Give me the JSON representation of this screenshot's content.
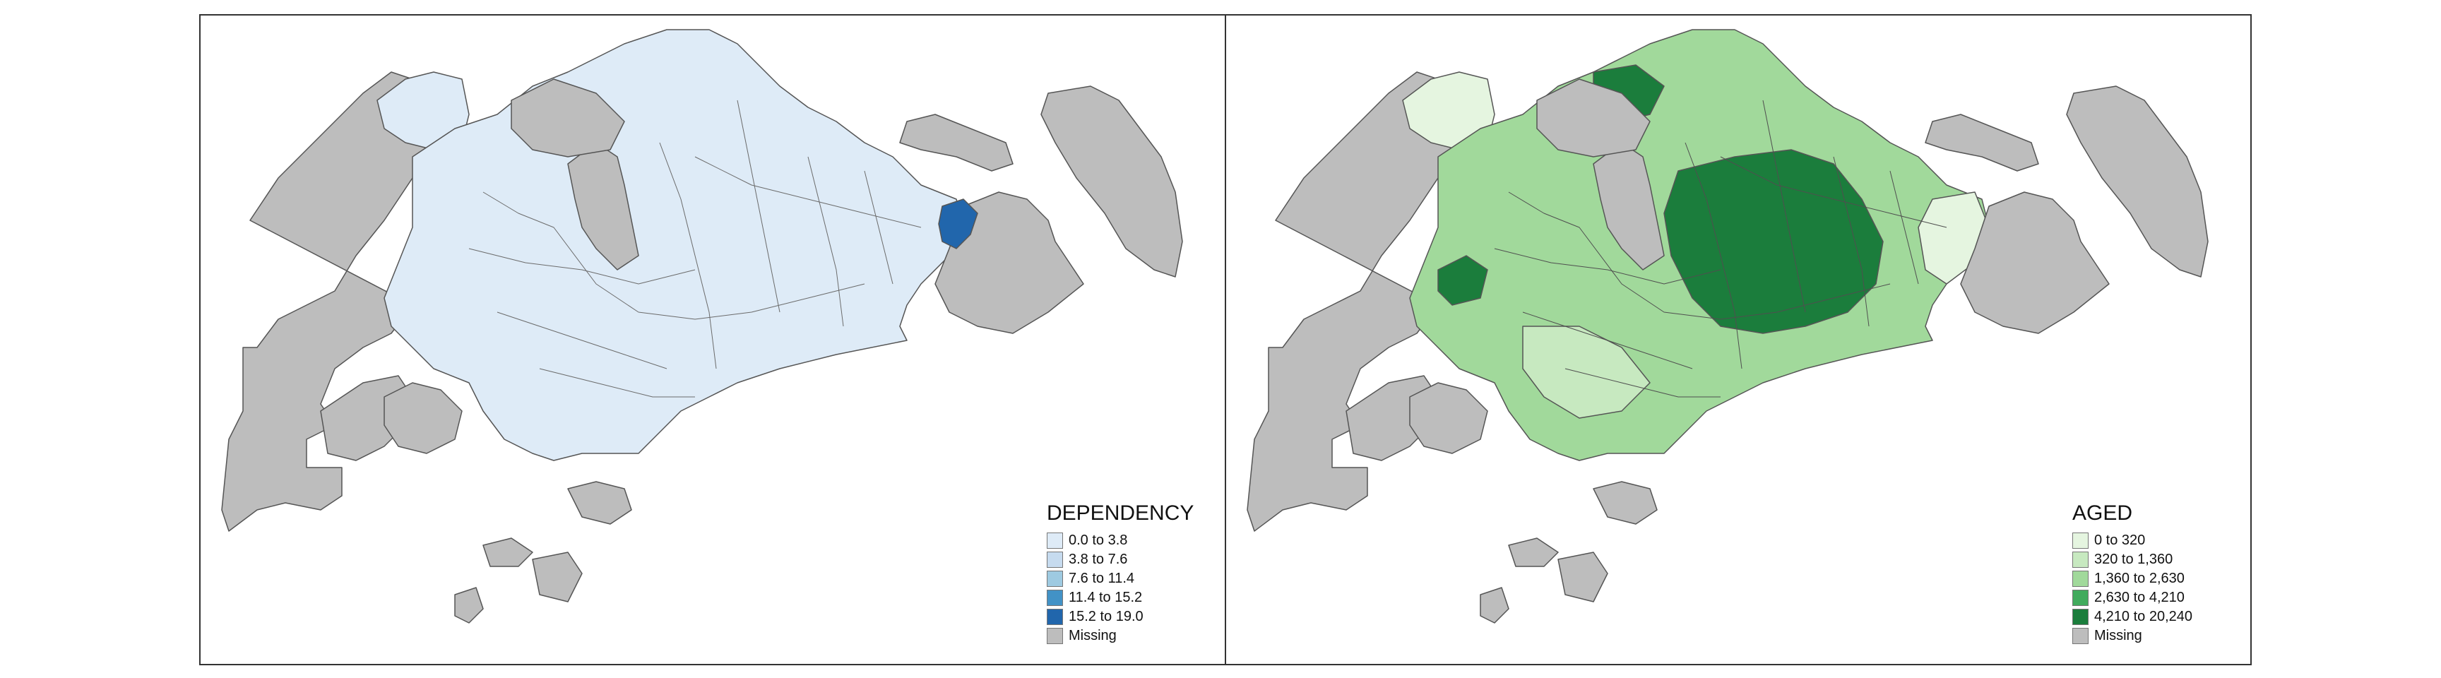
{
  "maps": [
    {
      "id": "left",
      "legend": {
        "title": "DEPENDENCY",
        "items": [
          {
            "label": "0.0 to 3.8",
            "color": "#deebf7"
          },
          {
            "label": "3.8 to 7.6",
            "color": "#c6dbef"
          },
          {
            "label": "7.6 to 11.4",
            "color": "#9ecae1"
          },
          {
            "label": "11.4 to 15.2",
            "color": "#4292c6"
          },
          {
            "label": "15.2 to 19.0",
            "color": "#2166ac"
          },
          {
            "label": "Missing",
            "color": "#bdbdbd"
          }
        ]
      }
    },
    {
      "id": "right",
      "legend": {
        "title": "AGED",
        "items": [
          {
            "label": "0 to 320",
            "color": "#e5f5e0"
          },
          {
            "label": "320 to 1,360",
            "color": "#c7e9c0"
          },
          {
            "label": "1,360 to 2,630",
            "color": "#a1d99b"
          },
          {
            "label": "2,630 to 4,210",
            "color": "#41ab5d"
          },
          {
            "label": "4,210 to 20,240",
            "color": "#1b7d3c"
          },
          {
            "label": "Missing",
            "color": "#bdbdbd"
          }
        ]
      }
    }
  ]
}
